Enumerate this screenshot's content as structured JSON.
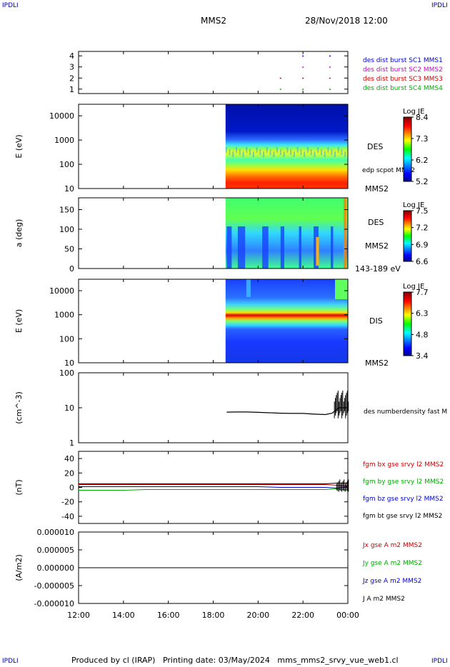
{
  "header": {
    "mission": "MMS2",
    "datetime": "28/Nov/2018 12:00",
    "corner_label": "IPDLI"
  },
  "footer": {
    "text": "Produced by cl (IRAP)   Printing date: 03/May/2024   mms_mms2_srvy_vue_web1.cl"
  },
  "chart_data": [
    {
      "type": "scatter",
      "panel": "burst-flags",
      "y_ticks": [
        "1",
        "2",
        "3",
        "4"
      ],
      "ylim": [
        0.6,
        4.4
      ],
      "series": [
        {
          "name": "des dist burst SC1 MMS1",
          "color": "#0000cc",
          "y": 4,
          "x_hours": [
            22.0,
            23.2
          ]
        },
        {
          "name": "des dist burst SC2 MMS2",
          "color": "#cc00cc",
          "y": 3,
          "x_hours": [
            22.0,
            23.2
          ]
        },
        {
          "name": "des dist burst SC3 MMS3",
          "color": "#cc0000",
          "y": 2,
          "x_hours": [
            21.0,
            22.0,
            23.2
          ]
        },
        {
          "name": "des dist burst SC4 MMS4",
          "color": "#00aa00",
          "y": 1,
          "x_hours": [
            21.0,
            22.0,
            23.2
          ]
        }
      ]
    },
    {
      "type": "heatmap",
      "panel": "des-energy",
      "ylabel": "E (eV)",
      "y_ticks": [
        "10",
        "100",
        "1000",
        "10000"
      ],
      "ylim": [
        10,
        30000
      ],
      "yscale": "log",
      "data_start_hour": 18.55,
      "right_labels": [
        "DES",
        "edp scpot MMS2",
        "MMS2"
      ],
      "colorbar": {
        "title": "Log JE",
        "ticks": [
          "5.2",
          "6.2",
          "7.3",
          "8.4"
        ]
      }
    },
    {
      "type": "heatmap",
      "panel": "des-pitch",
      "ylabel": "a (deg)",
      "y_ticks": [
        "0",
        "50",
        "100",
        "150"
      ],
      "ylim": [
        0,
        180
      ],
      "data_start_hour": 18.55,
      "right_labels": [
        "DES",
        "MMS2",
        "143-189 eV"
      ],
      "colorbar": {
        "title": "Log JE",
        "ticks": [
          "6.6",
          "6.9",
          "7.2",
          "7.5"
        ]
      }
    },
    {
      "type": "heatmap",
      "panel": "dis-energy",
      "ylabel": "E (eV)",
      "y_ticks": [
        "10",
        "100",
        "1000",
        "10000"
      ],
      "ylim": [
        10,
        30000
      ],
      "yscale": "log",
      "data_start_hour": 18.55,
      "right_labels": [
        "DIS",
        "MMS2"
      ],
      "colorbar": {
        "title": "Log JE",
        "ticks": [
          "3.4",
          "4.8",
          "6.3",
          "7.7"
        ]
      }
    },
    {
      "type": "line",
      "panel": "density",
      "ylabel": "(cm^-3)",
      "y_ticks": [
        "1",
        "10",
        "100"
      ],
      "ylim": [
        1,
        100
      ],
      "yscale": "log",
      "series": [
        {
          "name": "des numberdensity fast M",
          "color": "#000000",
          "x_hours": [
            18.6,
            19.0,
            19.5,
            20.0,
            20.5,
            21.0,
            21.5,
            22.0,
            22.5,
            23.0,
            23.3,
            23.6,
            24.0
          ],
          "values": [
            7.5,
            7.6,
            7.6,
            7.4,
            7.2,
            7.0,
            6.9,
            6.9,
            6.6,
            6.4,
            7.0,
            10.0,
            10.0
          ]
        }
      ]
    },
    {
      "type": "line",
      "panel": "bfield",
      "ylabel": "(nT)",
      "y_ticks": [
        "-40",
        "-20",
        "0",
        "20",
        "40"
      ],
      "ylim": [
        -50,
        50
      ],
      "x": [
        12,
        13,
        14,
        15,
        16,
        17,
        18,
        19,
        20,
        21,
        22,
        23,
        23.5,
        24
      ],
      "series": [
        {
          "name": "fgm bx gse srvy l2 MMS2",
          "color": "#cc0000",
          "values": [
            4,
            4,
            4,
            4,
            4,
            4,
            4,
            4,
            4,
            4,
            4,
            4,
            3,
            2
          ]
        },
        {
          "name": "fgm by gse srvy l2 MMS2",
          "color": "#00aa00",
          "values": [
            -4,
            -4,
            -4,
            -3,
            -3,
            -3,
            -3,
            -3,
            -3,
            -3,
            -3,
            -3,
            -2,
            -4
          ]
        },
        {
          "name": "fgm bz gse srvy l2 MMS2",
          "color": "#0000cc",
          "values": [
            1,
            1,
            1,
            1,
            1,
            1,
            1,
            1,
            1,
            0,
            0,
            0,
            -1,
            1
          ]
        },
        {
          "name": "fgm bt gse srvy l2 MMS2",
          "color": "#000000",
          "values": [
            5,
            5,
            5,
            5,
            5,
            5,
            5,
            5,
            5,
            5,
            5,
            5,
            6,
            6
          ]
        }
      ]
    },
    {
      "type": "line",
      "panel": "current",
      "ylabel": "(A/m2)",
      "y_ticks": [
        "-0.000010",
        "-0.000005",
        "0.000000",
        "0.000005",
        "0.000010"
      ],
      "ylim": [
        -1e-05,
        1e-05
      ],
      "x": [
        12,
        24
      ],
      "series": [
        {
          "name": "Jx gse A m2 MMS2",
          "color": "#cc0000",
          "values": [
            0,
            0
          ]
        },
        {
          "name": "Jy gse A m2 MMS2",
          "color": "#00aa00",
          "values": [
            0,
            0
          ]
        },
        {
          "name": "Jz gse A m2 MMS2",
          "color": "#0000cc",
          "values": [
            0,
            0
          ]
        },
        {
          "name": "J A m2 MMS2",
          "color": "#000000",
          "values": [
            0,
            0
          ]
        }
      ]
    }
  ],
  "x_axis": {
    "ticks": [
      "12:00",
      "14:00",
      "16:00",
      "18:00",
      "20:00",
      "22:00",
      "00:00"
    ],
    "range_hours": [
      12,
      24
    ]
  }
}
